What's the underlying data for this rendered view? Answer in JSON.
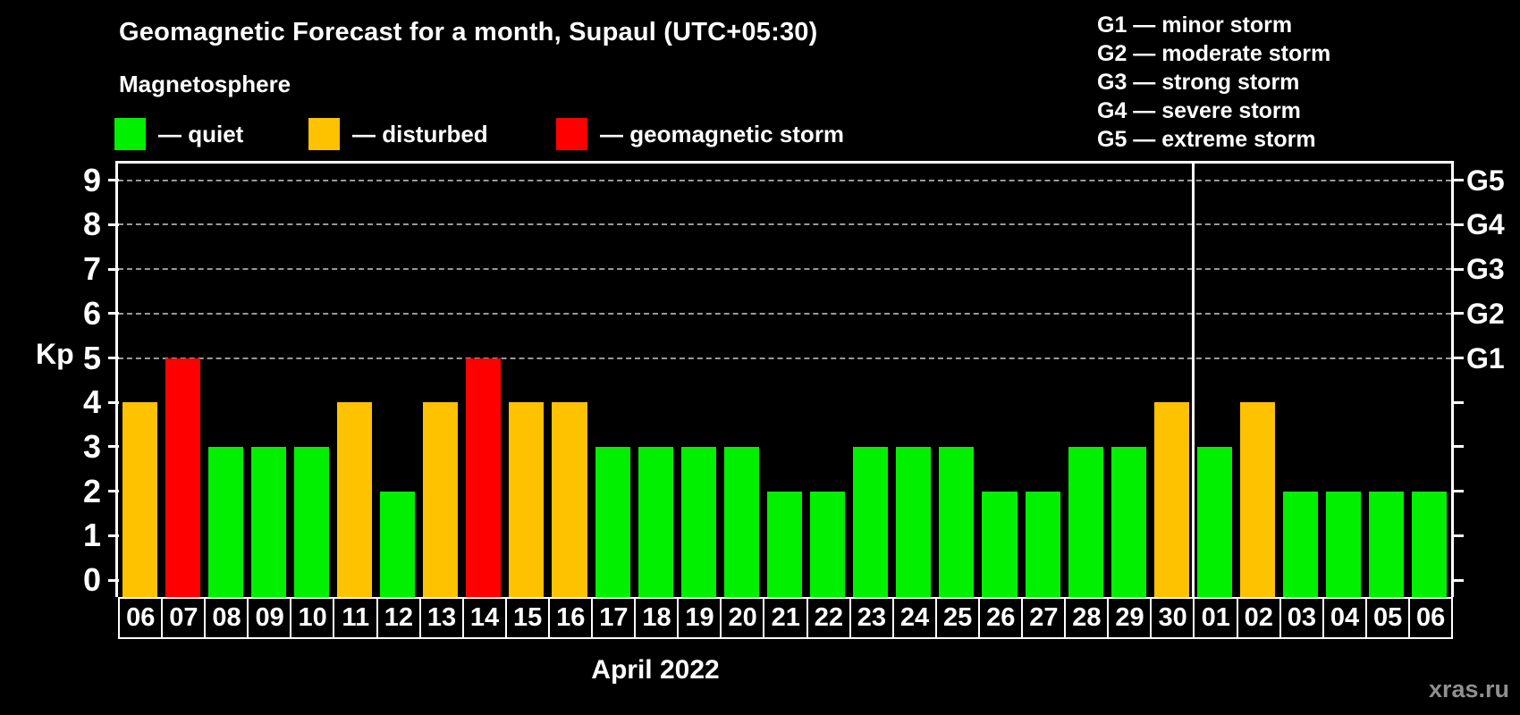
{
  "title": "Geomagnetic Forecast for a month, Supaul (UTC+05:30)",
  "subtitle": "Magnetosphere",
  "legend": {
    "items": [
      {
        "status": "quiet",
        "label": "— quiet",
        "color": "#00f000"
      },
      {
        "status": "disturbed",
        "label": "— disturbed",
        "color": "#ffc200"
      },
      {
        "status": "storm",
        "label": "— geomagnetic storm",
        "color": "#ff0000"
      }
    ]
  },
  "g_legend": {
    "lines": [
      "G1 — minor storm",
      "G2 — moderate storm",
      "G3 — strong storm",
      "G4 — severe storm",
      "G5 — extreme storm"
    ]
  },
  "watermark": "xras.ru",
  "chart_data": {
    "type": "bar",
    "title": "Geomagnetic Forecast for a month, Supaul (UTC+05:30)",
    "xlabel": "April 2022",
    "ylabel": "Kp",
    "ylim": [
      0,
      9.6
    ],
    "yticks": [
      0,
      1,
      2,
      3,
      4,
      5,
      6,
      7,
      8,
      9
    ],
    "gridline_levels": [
      5,
      6,
      7,
      8,
      9
    ],
    "grid": "dashed horizontal at G-storm levels only",
    "legend_position": "top-left",
    "right_axis": [
      {
        "kp": 5,
        "label": "G1"
      },
      {
        "kp": 6,
        "label": "G2"
      },
      {
        "kp": 7,
        "label": "G3"
      },
      {
        "kp": 8,
        "label": "G4"
      },
      {
        "kp": 9,
        "label": "G5"
      }
    ],
    "categories": [
      "06",
      "07",
      "08",
      "09",
      "10",
      "11",
      "12",
      "13",
      "14",
      "15",
      "16",
      "17",
      "18",
      "19",
      "20",
      "21",
      "22",
      "23",
      "24",
      "25",
      "26",
      "27",
      "28",
      "29",
      "30",
      "01",
      "02",
      "03",
      "04",
      "05",
      "06"
    ],
    "values": [
      4,
      5,
      3,
      3,
      3,
      4,
      2,
      4,
      5,
      4,
      4,
      3,
      3,
      3,
      3,
      2,
      2,
      3,
      3,
      3,
      2,
      2,
      3,
      3,
      4,
      3,
      4,
      2,
      2,
      2,
      2
    ],
    "statuses": [
      "disturbed",
      "storm",
      "quiet",
      "quiet",
      "quiet",
      "disturbed",
      "quiet",
      "disturbed",
      "storm",
      "disturbed",
      "disturbed",
      "quiet",
      "quiet",
      "quiet",
      "quiet",
      "quiet",
      "quiet",
      "quiet",
      "quiet",
      "quiet",
      "quiet",
      "quiet",
      "quiet",
      "quiet",
      "disturbed",
      "quiet",
      "disturbed",
      "quiet",
      "quiet",
      "quiet",
      "quiet"
    ],
    "month_separator_after_index": 24,
    "colors": {
      "quiet": "#00f000",
      "disturbed": "#ffc200",
      "storm": "#ff0000"
    }
  }
}
